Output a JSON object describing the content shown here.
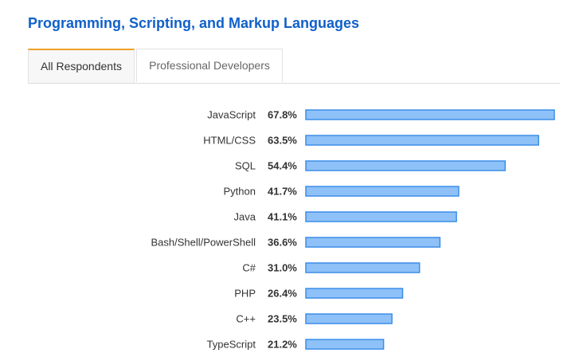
{
  "header": {
    "title": "Programming, Scripting, and Markup Languages"
  },
  "tabs": [
    {
      "label": "All Respondents",
      "active": true
    },
    {
      "label": "Professional Developers",
      "active": false
    }
  ],
  "colors": {
    "title": "#1060c9",
    "tab_accent": "#f0a126",
    "bar_fill": "#8ec1f7",
    "bar_stroke": "#3b8ee8"
  },
  "chart_data": {
    "type": "bar",
    "orientation": "horizontal",
    "title": "",
    "xlabel": "",
    "ylabel": "",
    "xlim": [
      0,
      67.8
    ],
    "grid": false,
    "categories": [
      "JavaScript",
      "HTML/CSS",
      "SQL",
      "Python",
      "Java",
      "Bash/Shell/PowerShell",
      "C#",
      "PHP",
      "C++",
      "TypeScript"
    ],
    "values": [
      67.8,
      63.5,
      54.4,
      41.7,
      41.1,
      36.6,
      31.0,
      26.4,
      23.5,
      21.2
    ],
    "value_labels": [
      "67.8%",
      "63.5%",
      "54.4%",
      "41.7%",
      "41.1%",
      "36.6%",
      "31.0%",
      "26.4%",
      "23.5%",
      "21.2%"
    ]
  }
}
